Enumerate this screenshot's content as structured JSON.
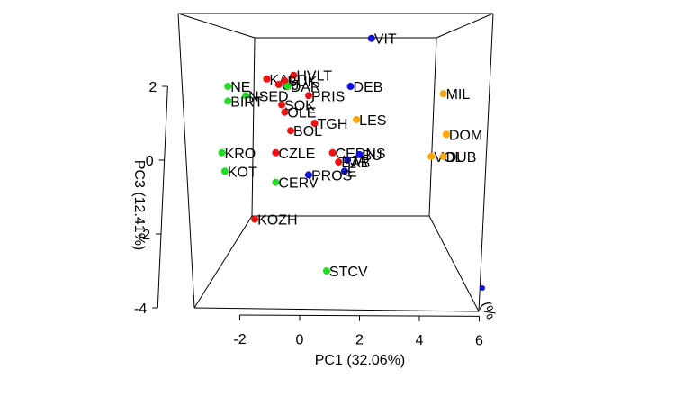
{
  "chart_data": {
    "type": "scatter",
    "title": "",
    "xlabel": "PC1 (32.06%)",
    "ylabel": "PC3 (12.41%)",
    "zlabel_fragment": "(%",
    "xlim": [
      -3,
      6
    ],
    "ylim": [
      -4,
      3
    ],
    "x_ticks": [
      -2,
      0,
      2,
      4,
      6
    ],
    "y_ticks": [
      -4,
      -2,
      0,
      2
    ],
    "grid": false,
    "colors": {
      "green": "#22dd22",
      "red": "#ee1111",
      "blue": "#1111dd",
      "orange": "#ffa500"
    },
    "points": [
      {
        "label": "VIT",
        "x": 2.4,
        "y": 3.3,
        "color": "blue"
      },
      {
        "label": "DEB",
        "x": 1.7,
        "y": 2.0,
        "color": "blue"
      },
      {
        "label": "MIL",
        "x": 4.8,
        "y": 1.8,
        "color": "orange"
      },
      {
        "label": "DOM",
        "x": 4.9,
        "y": 0.7,
        "color": "orange"
      },
      {
        "label": "VOL",
        "x": 4.4,
        "y": 0.1,
        "color": "orange"
      },
      {
        "label": "DUB",
        "x": 4.8,
        "y": 0.1,
        "color": "orange"
      },
      {
        "label": "LES",
        "x": 1.9,
        "y": 1.1,
        "color": "orange"
      },
      {
        "label": "KAL",
        "x": -1.1,
        "y": 2.2,
        "color": "red"
      },
      {
        "label": "UJ",
        "x": -0.7,
        "y": 2.05,
        "color": "red"
      },
      {
        "label": "HVLT",
        "x": -0.2,
        "y": 2.3,
        "color": "red"
      },
      {
        "label": "BUK",
        "x": -0.5,
        "y": 2.15,
        "color": "red"
      },
      {
        "label": "DAR",
        "x": -0.4,
        "y": 2.0,
        "color": "green"
      },
      {
        "label": "PRIS",
        "x": 0.3,
        "y": 1.75,
        "color": "red"
      },
      {
        "label": "NSED",
        "x": -1.8,
        "y": 1.75,
        "color": "green"
      },
      {
        "label": "NE",
        "x": -2.4,
        "y": 2.0,
        "color": "green"
      },
      {
        "label": "BIRT",
        "x": -2.4,
        "y": 1.6,
        "color": "green"
      },
      {
        "label": "SOK",
        "x": -0.6,
        "y": 1.5,
        "color": "red"
      },
      {
        "label": "OLE",
        "x": -0.5,
        "y": 1.3,
        "color": "red"
      },
      {
        "label": "TGH",
        "x": 0.5,
        "y": 1.0,
        "color": "red"
      },
      {
        "label": "BOL",
        "x": -0.3,
        "y": 0.8,
        "color": "red"
      },
      {
        "label": "KRO",
        "x": -2.6,
        "y": 0.2,
        "color": "green"
      },
      {
        "label": "KOT",
        "x": -2.5,
        "y": -0.3,
        "color": "green"
      },
      {
        "label": "CZLE",
        "x": -0.8,
        "y": 0.2,
        "color": "red"
      },
      {
        "label": "CERNS",
        "x": 1.1,
        "y": 0.2,
        "color": "red"
      },
      {
        "label": "BU",
        "x": 2.0,
        "y": 0.15,
        "color": "blue"
      },
      {
        "label": "JA",
        "x": 1.6,
        "y": 0.0,
        "color": "blue"
      },
      {
        "label": "BAB",
        "x": 1.3,
        "y": -0.05,
        "color": "red"
      },
      {
        "label": "E",
        "x": 1.5,
        "y": -0.3,
        "color": "blue"
      },
      {
        "label": "PROS",
        "x": 0.3,
        "y": -0.4,
        "color": "blue"
      },
      {
        "label": "CERV",
        "x": -0.8,
        "y": -0.6,
        "color": "green"
      },
      {
        "label": "KOZH",
        "x": -1.5,
        "y": -1.6,
        "color": "red"
      },
      {
        "label": "STCV",
        "x": 0.9,
        "y": -3.0,
        "color": "green"
      }
    ]
  }
}
